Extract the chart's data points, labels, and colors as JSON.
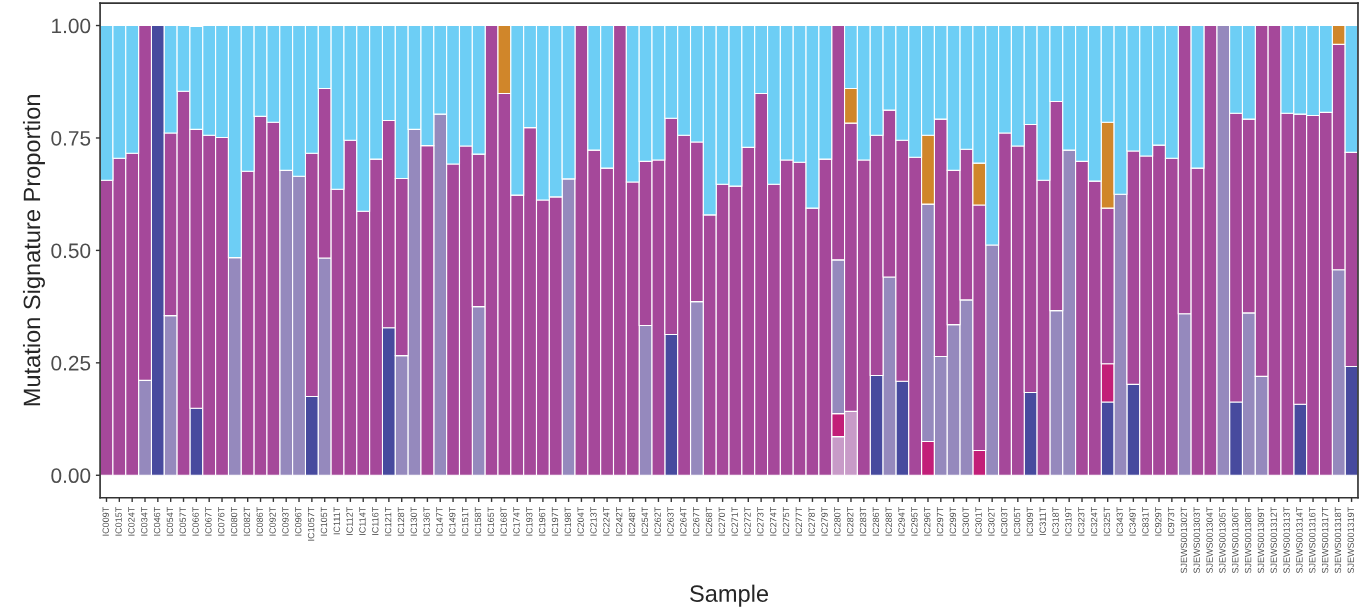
{
  "chart_data": {
    "type": "bar",
    "stacked": true,
    "xlabel": "Sample",
    "ylabel": "Mutation Signature Proportion",
    "categories": [
      "IC009T",
      "IC015T",
      "IC024T",
      "IC034T",
      "IC046T",
      "IC054T",
      "IC057T",
      "IC066T",
      "IC067T",
      "IC076T",
      "IC080T",
      "IC082T",
      "IC086T",
      "IC092T",
      "IC093T",
      "IC096T",
      "IC1057T",
      "IC105T",
      "IC111T",
      "IC112T",
      "IC114T",
      "IC116T",
      "IC121T",
      "IC128T",
      "IC130T",
      "IC136T",
      "IC147T",
      "IC149T",
      "IC151T",
      "IC158T",
      "IC165T",
      "IC168T",
      "IC174T",
      "IC193T",
      "IC196T",
      "IC197T",
      "IC198T",
      "IC204T",
      "IC213T",
      "IC224T",
      "IC242T",
      "IC248T",
      "IC254T",
      "IC262T",
      "IC263T",
      "IC264T",
      "IC267T",
      "IC268T",
      "IC270T",
      "IC271T",
      "IC272T",
      "IC273T",
      "IC274T",
      "IC275T",
      "IC277T",
      "IC278T",
      "IC279T",
      "IC280T",
      "IC282T",
      "IC283T",
      "IC286T",
      "IC288T",
      "IC294T",
      "IC295T",
      "IC296T",
      "IC297T",
      "IC299T",
      "IC300T",
      "IC301T",
      "IC302T",
      "IC303T",
      "IC305T",
      "IC309T",
      "IC311T",
      "IC318T",
      "IC319T",
      "IC323T",
      "IC324T",
      "IC325T",
      "IC343T",
      "IC349T",
      "IC831T",
      "IC929T",
      "IC973T",
      "SJEWS001302T",
      "SJEWS001303T",
      "SJEWS001304T",
      "SJEWS001305T",
      "SJEWS001306T",
      "SJEWS001308T",
      "SJEWS001309T",
      "SJEWS001312T",
      "SJEWS001313T",
      "SJEWS001314T",
      "SJEWS001316T",
      "SJEWS001317T",
      "SJEWS001318T",
      "SJEWS001319T"
    ],
    "series": [
      {
        "color": "#474a9e",
        "values": [
          null,
          null,
          null,
          null,
          1,
          null,
          null,
          0.149,
          null,
          null,
          null,
          null,
          null,
          null,
          null,
          null,
          0.175,
          null,
          null,
          null,
          null,
          null,
          0.328,
          null,
          null,
          null,
          null,
          null,
          null,
          null,
          null,
          null,
          null,
          null,
          null,
          null,
          null,
          null,
          null,
          null,
          null,
          null,
          null,
          null,
          0.313,
          null,
          null,
          null,
          null,
          null,
          null,
          null,
          null,
          null,
          null,
          null,
          null,
          null,
          null,
          null,
          0.222,
          null,
          0.209,
          null,
          null,
          null,
          null,
          null,
          null,
          null,
          null,
          null,
          0.184,
          null,
          null,
          null,
          null,
          null,
          0.163,
          null,
          0.202,
          null,
          null,
          null,
          null,
          null,
          null,
          null,
          0.163,
          null,
          null,
          null,
          null,
          0.158,
          null,
          null,
          null,
          0.242
        ]
      },
      {
        "color": "#c89bc8",
        "values": [
          null,
          null,
          null,
          null,
          null,
          null,
          null,
          null,
          null,
          null,
          null,
          null,
          null,
          null,
          null,
          null,
          null,
          null,
          null,
          null,
          null,
          null,
          null,
          null,
          null,
          null,
          null,
          null,
          null,
          null,
          null,
          null,
          null,
          null,
          null,
          null,
          null,
          null,
          null,
          null,
          null,
          null,
          null,
          null,
          null,
          null,
          null,
          null,
          null,
          null,
          null,
          null,
          null,
          null,
          null,
          null,
          null,
          0.086,
          0.142,
          null,
          null,
          null,
          null,
          null,
          null,
          null,
          null,
          null,
          null,
          null,
          null,
          null,
          null,
          null,
          null,
          null,
          null,
          null,
          null,
          null,
          null,
          null,
          null,
          null,
          null,
          null,
          null,
          null,
          null,
          null,
          null,
          null,
          null,
          null,
          null,
          null,
          null,
          null
        ]
      },
      {
        "color": "#c21e78",
        "values": [
          null,
          null,
          null,
          null,
          null,
          null,
          null,
          null,
          null,
          null,
          null,
          null,
          null,
          null,
          null,
          null,
          null,
          null,
          null,
          null,
          null,
          null,
          null,
          null,
          null,
          null,
          null,
          null,
          null,
          null,
          null,
          null,
          null,
          null,
          null,
          null,
          null,
          null,
          null,
          null,
          null,
          null,
          null,
          null,
          null,
          null,
          null,
          null,
          null,
          null,
          null,
          null,
          null,
          null,
          null,
          null,
          null,
          0.051,
          null,
          null,
          null,
          null,
          null,
          null,
          0.075,
          null,
          null,
          null,
          0.055,
          null,
          null,
          null,
          null,
          null,
          null,
          null,
          null,
          null,
          0.085,
          null,
          null,
          null,
          null,
          null,
          null,
          null,
          null,
          null,
          null,
          null,
          null,
          null,
          null,
          null,
          null,
          null,
          null,
          null
        ]
      },
      {
        "color": "#9589bd",
        "values": [
          null,
          null,
          null,
          0.211,
          null,
          0.355,
          null,
          null,
          null,
          null,
          0.484,
          null,
          null,
          null,
          0.678,
          0.665,
          null,
          0.483,
          null,
          null,
          null,
          null,
          null,
          0.266,
          0.769,
          null,
          0.803,
          null,
          null,
          0.375,
          null,
          null,
          null,
          null,
          null,
          null,
          0.659,
          null,
          null,
          null,
          null,
          null,
          0.333,
          null,
          null,
          null,
          0.386,
          null,
          null,
          null,
          null,
          null,
          null,
          null,
          null,
          null,
          null,
          0.342,
          null,
          null,
          null,
          0.441,
          null,
          null,
          0.528,
          0.264,
          0.335,
          0.39,
          null,
          0.512,
          null,
          null,
          null,
          null,
          0.366,
          0.723,
          null,
          null,
          null,
          0.625,
          null,
          null,
          null,
          null,
          0.359,
          null,
          null,
          1,
          null,
          0.361,
          0.22,
          null,
          null,
          null,
          null,
          null,
          0.457,
          null
        ]
      },
      {
        "color": "#a5489a",
        "values": [
          0.656,
          0.705,
          0.716,
          0.789,
          null,
          0.406,
          0.854,
          0.62,
          0.756,
          0.751,
          null,
          0.676,
          0.798,
          0.785,
          null,
          null,
          0.541,
          0.377,
          0.636,
          0.745,
          0.587,
          0.703,
          0.461,
          0.394,
          null,
          0.733,
          null,
          0.692,
          0.732,
          0.339,
          1,
          0.849,
          0.623,
          0.773,
          0.612,
          0.619,
          null,
          1,
          0.723,
          0.683,
          1,
          0.652,
          0.365,
          0.701,
          0.481,
          0.756,
          0.355,
          0.579,
          0.647,
          0.643,
          0.729,
          0.849,
          0.647,
          0.701,
          0.696,
          0.594,
          0.703,
          0.521,
          0.641,
          0.701,
          0.534,
          0.371,
          0.536,
          0.707,
          null,
          0.528,
          0.343,
          0.335,
          0.546,
          null,
          0.761,
          0.732,
          0.596,
          0.656,
          0.465,
          null,
          0.698,
          0.654,
          0.346,
          null,
          0.519,
          0.71,
          0.734,
          0.705,
          0.641,
          0.683,
          1,
          null,
          0.642,
          0.431,
          0.78,
          1,
          0.805,
          0.645,
          0.8,
          0.807,
          0.501,
          0.476
        ]
      },
      {
        "color": "#d0862a",
        "values": [
          null,
          null,
          null,
          null,
          null,
          null,
          null,
          null,
          null,
          null,
          null,
          null,
          null,
          null,
          null,
          null,
          null,
          null,
          null,
          null,
          null,
          null,
          null,
          null,
          null,
          null,
          null,
          null,
          null,
          null,
          null,
          0.151,
          null,
          null,
          null,
          null,
          null,
          null,
          null,
          null,
          null,
          null,
          null,
          null,
          null,
          null,
          null,
          null,
          null,
          null,
          null,
          null,
          null,
          null,
          null,
          null,
          null,
          null,
          0.077,
          null,
          null,
          null,
          null,
          null,
          0.153,
          null,
          null,
          null,
          0.093,
          null,
          null,
          null,
          null,
          null,
          null,
          null,
          null,
          null,
          0.191,
          null,
          null,
          null,
          null,
          null,
          null,
          null,
          null,
          null,
          null,
          null,
          null,
          null,
          null,
          null,
          null,
          null,
          0.042,
          null
        ]
      },
      {
        "color": "#6dcef5",
        "values": [
          0.344,
          0.295,
          0.284,
          null,
          null,
          0.239,
          0.146,
          0.229,
          0.244,
          0.249,
          0.516,
          0.324,
          0.202,
          0.215,
          0.322,
          0.335,
          0.284,
          0.14,
          0.364,
          0.255,
          0.413,
          0.297,
          0.211,
          0.34,
          0.231,
          0.267,
          0.197,
          0.308,
          0.268,
          0.286,
          null,
          null,
          0.377,
          0.227,
          0.388,
          0.381,
          0.341,
          null,
          0.277,
          0.317,
          null,
          0.348,
          0.302,
          0.299,
          0.206,
          0.244,
          0.259,
          0.421,
          0.353,
          0.357,
          0.271,
          0.151,
          0.353,
          0.299,
          0.304,
          0.406,
          0.297,
          null,
          0.14,
          0.299,
          0.244,
          0.188,
          0.255,
          0.293,
          0.244,
          0.208,
          0.322,
          0.275,
          0.306,
          0.488,
          0.239,
          0.268,
          0.22,
          0.344,
          0.169,
          0.277,
          0.302,
          0.346,
          0.215,
          0.375,
          0.279,
          0.29,
          0.266,
          0.295,
          null,
          0.317,
          null,
          null,
          0.195,
          0.208,
          null,
          null,
          0.195,
          0.197,
          0.2,
          0.193,
          null,
          0.282
        ]
      }
    ],
    "ylim": [
      -0.05,
      1.05
    ],
    "yticks": [
      {
        "value": 0,
        "label": "0.00"
      },
      {
        "value": 0.25,
        "label": "0.25"
      },
      {
        "value": 0.5,
        "label": "0.50"
      },
      {
        "value": 0.75,
        "label": "0.75"
      },
      {
        "value": 1,
        "label": "1.00"
      }
    ],
    "grid": false,
    "legend": false
  }
}
